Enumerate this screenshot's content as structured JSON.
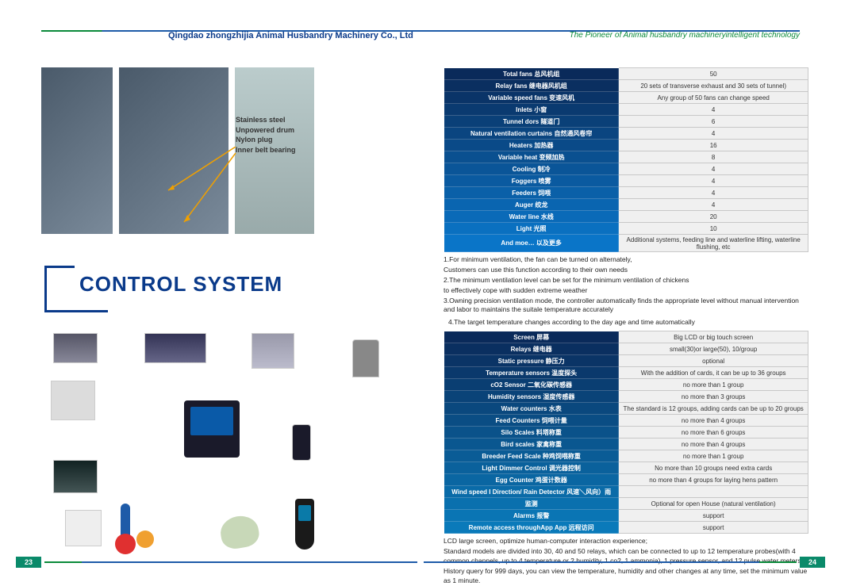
{
  "header": {
    "company": "Qingdao zhongzhijia Animal Husbandry Machinery Co., Ltd",
    "tagline": "The Pioneer of Animal husbandry machineryintelligent technology"
  },
  "callouts": [
    "Stainless steel",
    "Unpowered drum",
    "Nylon plug",
    "Inner belt bearing"
  ],
  "section_title": "CONTROL SYSTEM",
  "table1": {
    "rows": [
      {
        "k": "Total fans 总风机组",
        "v": "50"
      },
      {
        "k": "Relay fans 继电器风机组",
        "v": "20 sets of transverse exhaust and 30 sets of tunnel)"
      },
      {
        "k": "Variable speed fans 变速风机",
        "v": "Any group of 50 fans can change speed"
      },
      {
        "k": "Inlets 小窗",
        "v": "4"
      },
      {
        "k": "Tunnel dors 隧道门",
        "v": "6"
      },
      {
        "k": "Natural ventilation curtains 自然通风卷帘",
        "v": "4"
      },
      {
        "k": "Heaters 加热器",
        "v": "16"
      },
      {
        "k": "Variable heat 变频加热",
        "v": "8"
      },
      {
        "k": "Cooling 制冷",
        "v": "4"
      },
      {
        "k": "Foggers 喷雾",
        "v": "4"
      },
      {
        "k": "Feeders 饲喂",
        "v": "4"
      },
      {
        "k": "Auger 绞龙",
        "v": "4"
      },
      {
        "k": "Water line 水线",
        "v": "20"
      },
      {
        "k": "Light 光照",
        "v": "10"
      },
      {
        "k": "And moe… 以及更多",
        "v": "Additional systems, feeding line and waterline lifting, waterline flushing, etc"
      }
    ]
  },
  "notes1": [
    "1.For minimum ventilation, the fan can be turned on alternately,",
    " Customers can use this function according to their own needs",
    "2.The minimum ventilation level can be set for the minimum ventilation of chickens",
    "to  effectively cope with sudden extreme weather",
    "3.Owning precision ventilation mode, the controller automatically finds the appropriate level without manual intervention and labor to maintains the suitale temperature accurately"
  ],
  "notes1_extra": "4.The target temperature changes according to the day age and time automatically",
  "table2": {
    "rows": [
      {
        "k": "Screen 屏幕",
        "v": "Big LCD or big touch screen"
      },
      {
        "k": "Relays 继电器",
        "v": "small(30)or large(50), 10/group"
      },
      {
        "k": "Static pressure 静压力",
        "v": "optional"
      },
      {
        "k": "Temperature sensors 温度探头",
        "v": "With the addition of cards, it can be up to 36 groups"
      },
      {
        "k": "cO2 Sensor 二氧化碳传感器",
        "v": "no more than 1 group"
      },
      {
        "k": "Humidity sensors 湿度传感器",
        "v": "no more than 3 groups"
      },
      {
        "k": "Water counters 水表",
        "v": "The standard is 12 groups, adding cards can be up to 20 groups"
      },
      {
        "k": "Feed Counters 饲喂计量",
        "v": "no more than 4 groups"
      },
      {
        "k": "Silo Scales 料塔称重",
        "v": "no more than 6 groups"
      },
      {
        "k": "Bird scales 家禽称重",
        "v": "no more than 4 groups"
      },
      {
        "k": "Breeder Feed Scale 种鸡饲喂称重",
        "v": "no more than 1 group"
      },
      {
        "k": "Light Dimmer Control 调光器控制",
        "v": "No more than 10 groups need extra cards"
      },
      {
        "k": "Egg Counter 鸡蛋计数器",
        "v": "no more than 4 groups for laying hens pattern"
      },
      {
        "k": "Wind speed I Direction/ Rain Detector 风速＼风向）雨",
        "v": ""
      },
      {
        "k": "监测",
        "v": "Optional for open House (natural ventilation)"
      },
      {
        "k": "Alarms 报警",
        "v": "support"
      },
      {
        "k": "Remote access throughApp App 远程访问",
        "v": "support"
      }
    ]
  },
  "notes2": [
    "LCD large screen, optimize human-computer interaction experience;",
    "Standard models are divided into 30, 40 and 50 relays, which can be connected to up to 12 temperature probes(with 4 common channels, up to 4 temperature or 2 humidity, 1 co2, 1 ammonia), 1 pressure sensor, and 12 pulse water meters",
    "History query for 999 days, you can view the temperature, humidity and other changes at any time, set the minimum value as 1 minute."
  ],
  "page_left": "23",
  "page_right": "24"
}
